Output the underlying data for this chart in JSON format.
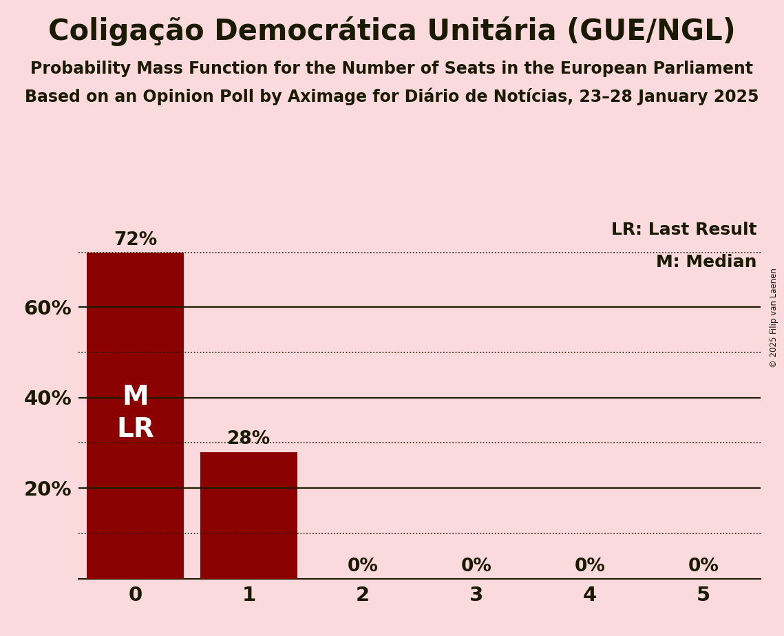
{
  "title": "Coligação Democrática Unitária (GUE/NGL)",
  "subtitle1": "Probability Mass Function for the Number of Seats in the European Parliament",
  "subtitle2": "Based on an Opinion Poll by Aximage for Diário de Notícias, 23–28 January 2025",
  "copyright": "© 2025 Filip van Laenen",
  "categories": [
    0,
    1,
    2,
    3,
    4,
    5
  ],
  "values": [
    0.72,
    0.28,
    0.0,
    0.0,
    0.0,
    0.0
  ],
  "bar_color": "#8B0000",
  "background_color": "#FADADD",
  "text_color": "#1A1A00",
  "median": 0,
  "last_result": 0,
  "ylim": [
    0,
    0.8
  ],
  "ylabel_ticks": [
    0.2,
    0.4,
    0.6
  ],
  "ylabel_tick_labels": [
    "20%",
    "40%",
    "60%"
  ],
  "solid_gridlines": [
    0.2,
    0.4,
    0.6
  ],
  "dotted_gridlines": [
    0.1,
    0.3,
    0.5,
    0.72
  ],
  "bar_labels": [
    "72%",
    "28%",
    "0%",
    "0%",
    "0%",
    "0%"
  ],
  "legend_lr": "LR: Last Result",
  "legend_m": "M: Median",
  "bar_width": 0.85,
  "title_fontsize": 30,
  "subtitle_fontsize": 17,
  "tick_fontsize": 21,
  "label_fontsize": 19,
  "legend_fontsize": 18,
  "ml_fontsize": 28
}
